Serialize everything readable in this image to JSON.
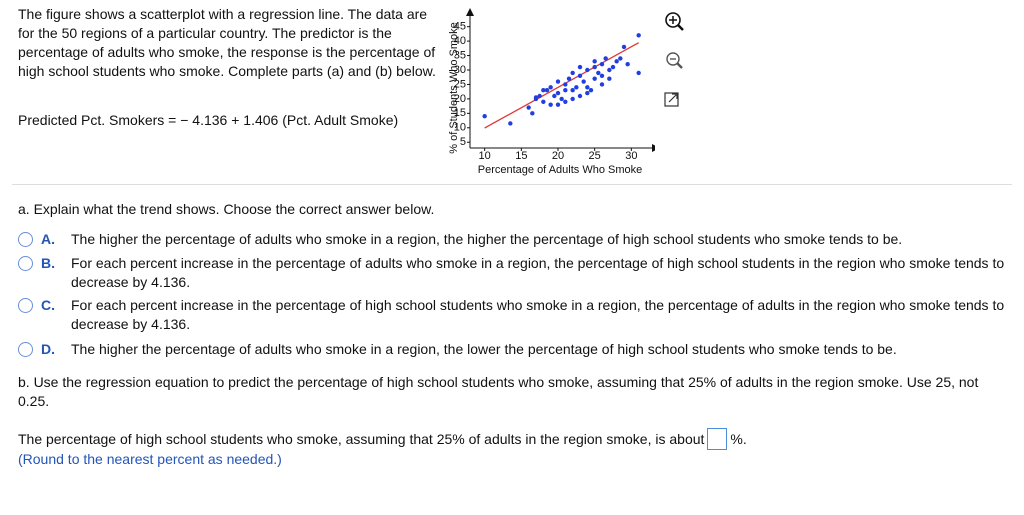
{
  "intro": {
    "text": "The figure shows a scatterplot with a regression line. The data are for the 50 regions of a particular country. The predictor is the percentage of adults who smoke, the response is the percentage of high school students who smoke. Complete parts (a) and (b) below.",
    "equation": "Predicted Pct. Smokers = − 4.136 + 1.406 (Pct. Adult Smoke)"
  },
  "chart_data": {
    "type": "scatter",
    "xlabel": "Percentage of Adults Who Smoke",
    "ylabel": "% of Students Who Smoke",
    "xlim": [
      8,
      32
    ],
    "ylim": [
      3,
      48
    ],
    "xticks": [
      10,
      15,
      20,
      25,
      30
    ],
    "yticks": [
      5,
      10,
      15,
      20,
      25,
      30,
      35,
      40,
      45
    ],
    "color": "#1f3fe0",
    "regression": {
      "intercept": -4.136,
      "slope": 1.406,
      "color": "#e03a3a"
    },
    "x": [
      10,
      13.5,
      16,
      17,
      17.5,
      18,
      18.5,
      19,
      19.5,
      20,
      20.5,
      21,
      21,
      21.5,
      22,
      22.5,
      23,
      23,
      23.5,
      24,
      24,
      24.5,
      25,
      25,
      25.5,
      26,
      26,
      26.5,
      27,
      27.5,
      28,
      28.5,
      29,
      29.5,
      31,
      31,
      20,
      22,
      19,
      18,
      24,
      22,
      21,
      25,
      23,
      27,
      16.5,
      17,
      20,
      26
    ],
    "y": [
      14,
      11.5,
      17,
      20,
      21,
      19,
      23,
      18,
      21,
      22,
      20,
      25,
      19,
      27,
      23,
      24,
      21,
      28,
      26,
      30,
      24,
      23,
      27,
      31,
      29,
      32,
      25,
      34,
      30,
      31,
      33,
      34,
      38,
      32,
      42,
      29,
      26,
      29,
      24,
      23,
      22,
      20,
      23,
      33,
      31,
      27,
      15,
      20.5,
      18,
      28
    ]
  },
  "part_a": {
    "prompt": "a. Explain what the trend shows. Choose the correct answer below.",
    "options": [
      {
        "letter": "A.",
        "text": "The higher the percentage of adults who smoke in a region, the higher the percentage of high school students who smoke tends to be."
      },
      {
        "letter": "B.",
        "text": "For each percent increase in the percentage of adults who smoke in a region, the percentage of high school students in the region who smoke tends to decrease by 4.136."
      },
      {
        "letter": "C.",
        "text": "For each percent increase in the percentage of high school students who smoke in a region, the percentage of adults in the region who smoke tends to decrease by 4.136."
      },
      {
        "letter": "D.",
        "text": "The higher the percentage of adults who smoke in a region, the lower the percentage of high school students who smoke tends to be."
      }
    ]
  },
  "part_b": {
    "prompt": "b. Use the regression equation to predict the percentage of high school students who smoke, assuming that 25% of adults in the region smoke. Use 25, not 0.25.",
    "answer_before": "The percentage of high school students who smoke, assuming that 25% of adults in the region smoke, is about",
    "answer_after": "%.",
    "note": "(Round to the nearest percent as needed.)"
  }
}
